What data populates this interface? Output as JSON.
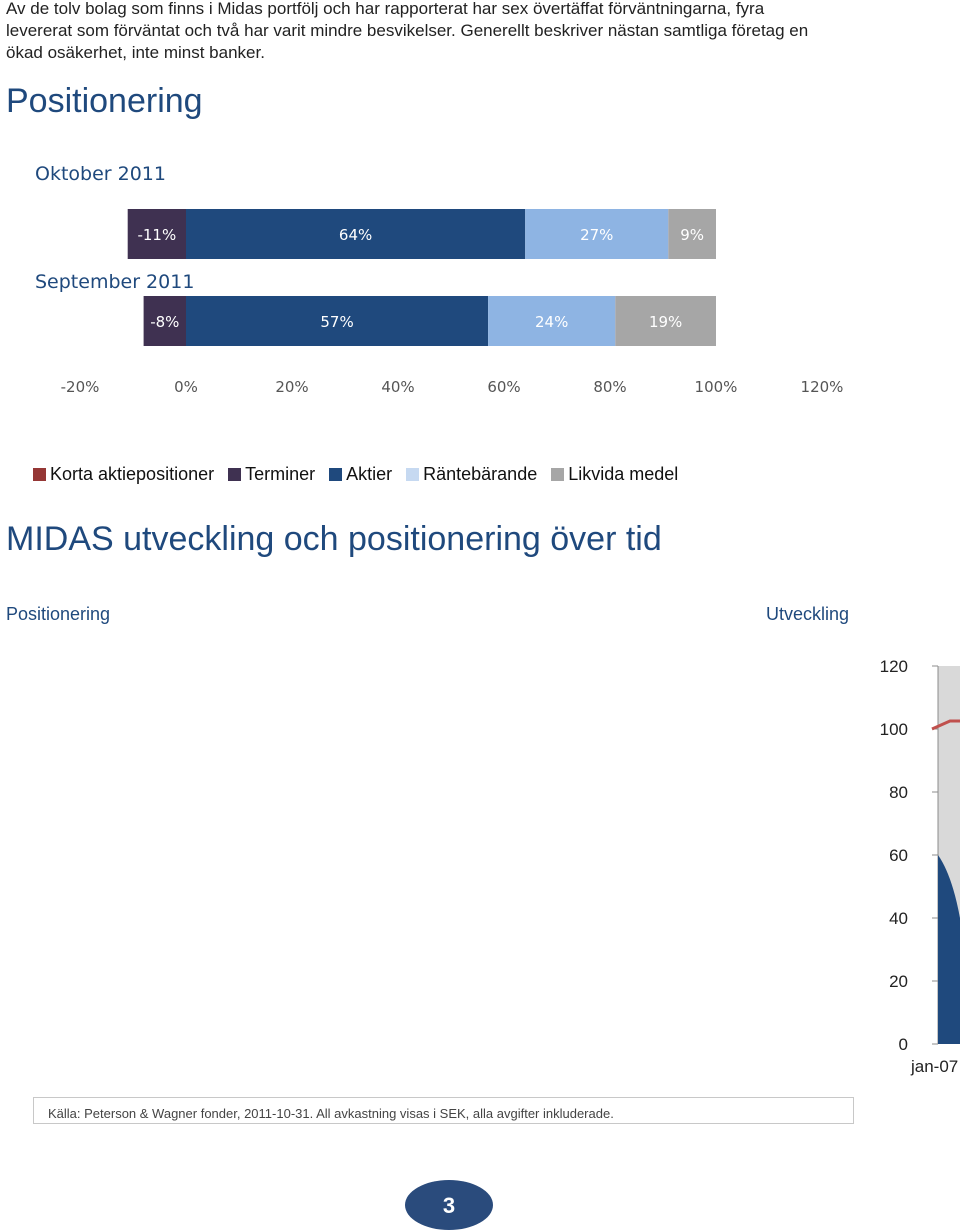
{
  "intro": {
    "lines": [
      "Av de tolv bolag som finns i Midas portfölj och har rapporterat har sex övertäffat förväntningarna, fyra",
      "levererat som förväntat och två har varit mindre besvikelser. Generellt beskriver nästan samtliga företag en",
      "ökad osäkerhet, inte minst banker."
    ]
  },
  "section1": {
    "title": "Positionering"
  },
  "section2": {
    "title": "MIDAS utveckling och positionering över tid",
    "left_subtitle": "Positionering",
    "right_subtitle": "Utveckling"
  },
  "chart_data": [
    {
      "type": "bar",
      "orientation": "horizontal-stacked",
      "categories": [
        "Oktober 2011",
        "September 2011"
      ],
      "series": [
        {
          "name": "Korta aktiepositioner",
          "color": "#953735",
          "values": [
            0,
            0
          ]
        },
        {
          "name": "Terminer",
          "color": "#3f3151",
          "values": [
            -11,
            -8
          ],
          "labels": [
            "-11%",
            "-8%"
          ]
        },
        {
          "name": "Aktier",
          "color": "#1f497d",
          "values": [
            64,
            57
          ],
          "labels": [
            "64%",
            "57%"
          ]
        },
        {
          "name": "Räntebärande",
          "color": "#8eb4e3",
          "values": [
            27,
            24
          ],
          "labels": [
            "27%",
            "24%"
          ]
        },
        {
          "name": "Likvida medel",
          "color": "#a6a6a6",
          "values": [
            9,
            19
          ],
          "labels": [
            "9%",
            "19%"
          ]
        }
      ],
      "xlim": [
        -20,
        120
      ],
      "x_ticks": [
        "-20%",
        "0%",
        "20%",
        "40%",
        "60%",
        "80%",
        "100%",
        "120%"
      ],
      "legend": {
        "placement": "bottom",
        "items": [
          {
            "name": "Korta aktiepositioner",
            "color": "#953735"
          },
          {
            "name": "Terminer",
            "color": "#3f3151"
          },
          {
            "name": "Aktier",
            "color": "#1f497d"
          },
          {
            "name": "Räntebärande",
            "color": "#c6d9f1"
          },
          {
            "name": "Likvida medel",
            "color": "#a6a6a6"
          }
        ]
      }
    },
    {
      "type": "area",
      "ylim": [
        0,
        120
      ],
      "y_ticks": [
        "0",
        "20",
        "40",
        "60",
        "80",
        "100",
        "120"
      ],
      "x_ticks": [
        "jan-07"
      ],
      "series": [
        {
          "color": "#c0504d",
          "x": [
            "jan-07"
          ],
          "values": [
            100
          ]
        },
        {
          "color": "#1f497d",
          "x": [
            "jan-07"
          ],
          "values": [
            60
          ]
        }
      ],
      "note": "clipped at right edge"
    }
  ],
  "footer": {
    "source": "Källa: Peterson & Wagner fonder, 2011-10-31. All avkastning visas i SEK, alla avgifter inkluderade."
  },
  "page": {
    "number": "3"
  }
}
